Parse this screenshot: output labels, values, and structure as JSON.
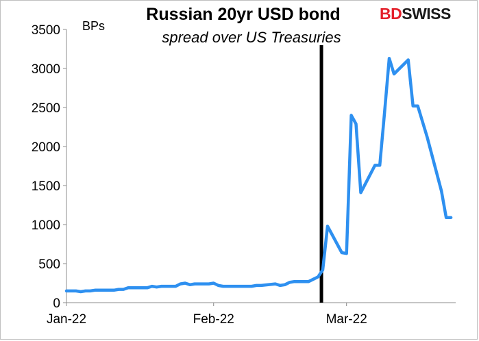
{
  "logo": {
    "text": "BDSWISS",
    "part1": "BD",
    "part2": "SWISS",
    "color_primary": "#e3202b"
  },
  "chart_data": {
    "type": "line",
    "title": "Russian 20yr USD bond",
    "subtitle": "spread over US Treasuries",
    "ylabel": "BPs",
    "xlabel": "",
    "ylim": [
      0,
      3500
    ],
    "yticks": [
      0,
      500,
      1000,
      1500,
      2000,
      2500,
      3000,
      3500
    ],
    "xlim": [
      "2022-01-01",
      "2022-03-24"
    ],
    "xticks": [
      {
        "date": "2022-01-01",
        "label": "Jan-22"
      },
      {
        "date": "2022-02-01",
        "label": "Feb-22"
      },
      {
        "date": "2022-03-01",
        "label": "Mar-22"
      }
    ],
    "grid": false,
    "legend": "none",
    "line_color": "#2e90f0",
    "marker_line": {
      "date": "2022-02-24",
      "color": "#000000"
    },
    "series": [
      {
        "x": [
          "2022-01-01",
          "2022-01-03",
          "2022-01-04",
          "2022-01-05",
          "2022-01-06",
          "2022-01-07",
          "2022-01-10",
          "2022-01-11",
          "2022-01-12",
          "2022-01-13",
          "2022-01-14",
          "2022-01-17",
          "2022-01-18",
          "2022-01-19",
          "2022-01-20",
          "2022-01-21",
          "2022-01-24",
          "2022-01-25",
          "2022-01-26",
          "2022-01-27",
          "2022-01-28",
          "2022-01-31",
          "2022-02-01",
          "2022-02-02",
          "2022-02-03",
          "2022-02-04",
          "2022-02-07",
          "2022-02-08",
          "2022-02-09",
          "2022-02-10",
          "2022-02-11",
          "2022-02-14",
          "2022-02-15",
          "2022-02-16",
          "2022-02-17",
          "2022-02-18",
          "2022-02-21",
          "2022-02-22",
          "2022-02-23",
          "2022-02-24",
          "2022-02-25",
          "2022-02-28",
          "2022-03-01",
          "2022-03-02",
          "2022-03-03",
          "2022-03-04",
          "2022-03-07",
          "2022-03-08",
          "2022-03-09",
          "2022-03-10",
          "2022-03-11",
          "2022-03-14",
          "2022-03-15",
          "2022-03-16",
          "2022-03-17",
          "2022-03-18",
          "2022-03-21",
          "2022-03-22",
          "2022-03-23"
        ],
        "values": [
          150,
          150,
          140,
          150,
          150,
          160,
          160,
          160,
          170,
          170,
          190,
          190,
          190,
          210,
          200,
          210,
          210,
          240,
          250,
          230,
          240,
          240,
          250,
          220,
          210,
          210,
          210,
          210,
          210,
          220,
          220,
          240,
          220,
          230,
          260,
          270,
          270,
          300,
          330,
          420,
          980,
          640,
          630,
          2400,
          2290,
          1410,
          1760,
          1760,
          2430,
          3130,
          2930,
          3110,
          2520,
          2520,
          2320,
          2120,
          1430,
          1090,
          1090
        ]
      }
    ]
  }
}
